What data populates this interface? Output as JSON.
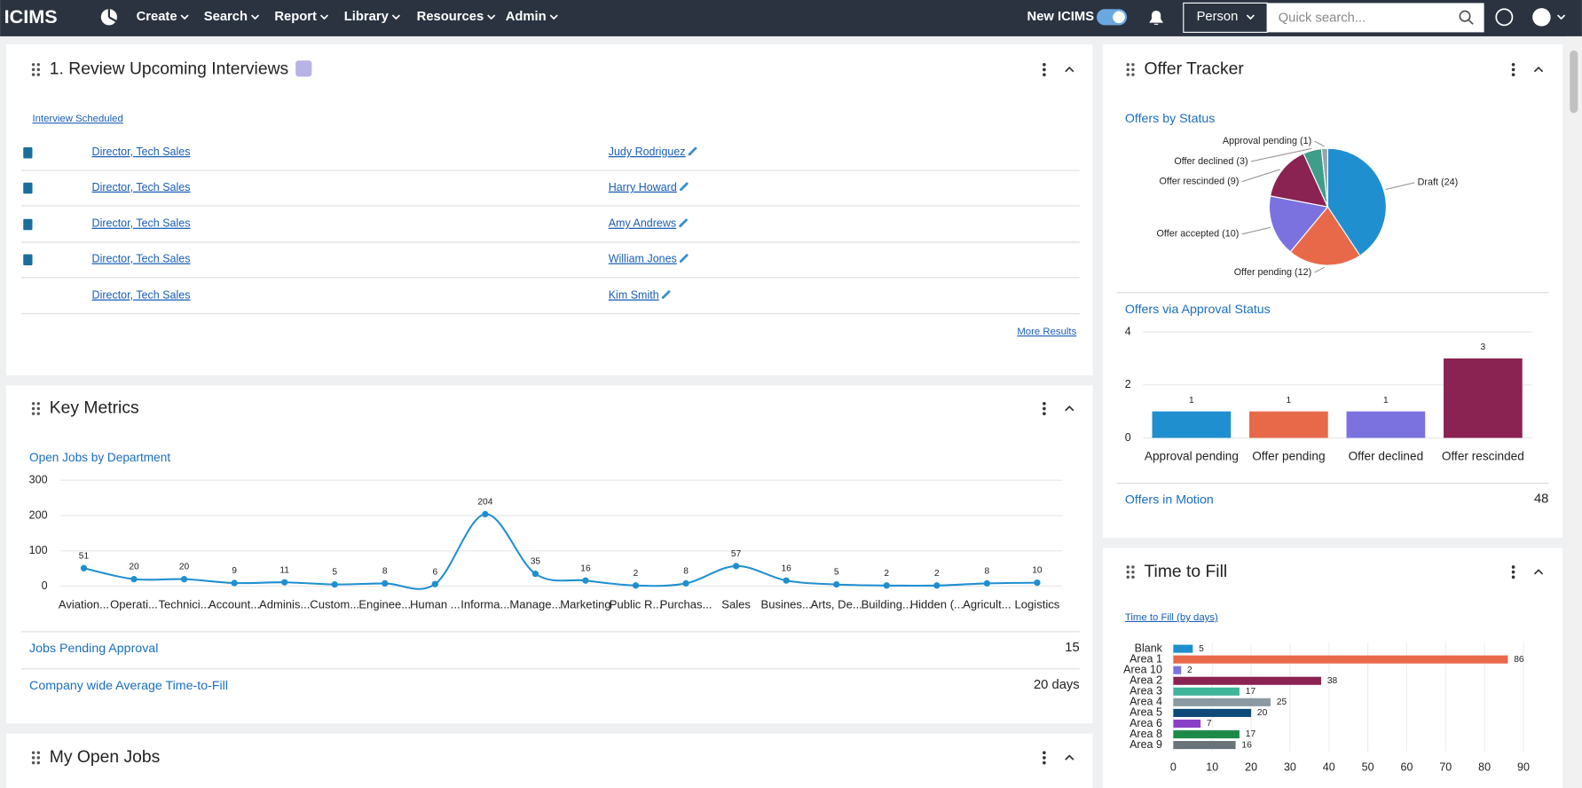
{
  "nav": {
    "logo": "ICIMS",
    "menu": [
      "Create",
      "Search",
      "Report",
      "Library",
      "Resources",
      "Admin"
    ],
    "toggle_label": "New ICIMS",
    "search_scope": "Person",
    "search_placeholder": "Quick search..."
  },
  "interviews": {
    "title": "1. Review Upcoming Interviews",
    "filter": "Interview Scheduled",
    "rows": [
      {
        "job": "Director, Tech Sales",
        "person": "Judy Rodriguez"
      },
      {
        "job": "Director, Tech Sales",
        "person": "Harry Howard"
      },
      {
        "job": "Director, Tech Sales",
        "person": "Amy Andrews"
      },
      {
        "job": "Director, Tech Sales",
        "person": "William Jones"
      },
      {
        "job": "Director, Tech Sales",
        "person": "Kim Smith"
      }
    ],
    "more": "More Results"
  },
  "key_metrics": {
    "title": "Key Metrics",
    "chart": {
      "type": "line",
      "title": "Open Jobs by Department",
      "categories": [
        "Aviation...",
        "Operati...",
        "Technici...",
        "Account...",
        "Adminis...",
        "Custom...",
        "Enginee...",
        "Human ...",
        "Informa...",
        "Manage...",
        "Marketing",
        "Public R...",
        "Purchas...",
        "Sales",
        "Busines...",
        "Arts, De...",
        "Building...",
        "Hidden (...",
        "Agricult...",
        "Logistics"
      ],
      "values": [
        51,
        20,
        20,
        9,
        11,
        5,
        8,
        6,
        204,
        35,
        16,
        2,
        8,
        57,
        16,
        5,
        2,
        2,
        8,
        10
      ],
      "color": "#1f8fd0",
      "ylim": [
        0,
        300
      ],
      "yticks": [
        0,
        100,
        200,
        300
      ],
      "grid": true
    },
    "stats": [
      {
        "label": "Jobs Pending Approval",
        "value": "15"
      },
      {
        "label": "Company wide Average Time-to-Fill",
        "value": "20 days"
      }
    ]
  },
  "my_open_jobs": {
    "title": "My Open Jobs"
  },
  "offer_tracker": {
    "title": "Offer Tracker",
    "pie": {
      "type": "pie",
      "title": "Offers by Status",
      "categories": [
        "Draft",
        "Offer pending",
        "Offer accepted",
        "Offer rescinded",
        "Offer declined",
        "Approval pending"
      ],
      "values": [
        24,
        12,
        10,
        9,
        3,
        1
      ],
      "value_labels": [
        "Draft (24)",
        "Offer pending (12)",
        "Offer accepted (10)",
        "Offer rescinded (9)",
        "Offer declined (3)",
        "Approval pending (1)"
      ],
      "colors": [
        "#1f8fd0",
        "#e8694a",
        "#7b72e0",
        "#8a2252",
        "#3f9e8a",
        "#9aa3a8"
      ]
    },
    "bar": {
      "type": "bar",
      "title": "Offers via Approval Status",
      "categories": [
        "Approval pending",
        "Offer pending",
        "Offer declined",
        "Offer rescinded"
      ],
      "values": [
        1,
        1,
        1,
        3
      ],
      "colors": [
        "#1f8fd0",
        "#e8694a",
        "#7b72e0",
        "#8a2252"
      ],
      "ylim": [
        0,
        4
      ],
      "yticks": [
        0,
        2,
        4
      ],
      "grid": true
    },
    "stat": {
      "label": "Offers in Motion",
      "value": "48"
    }
  },
  "time_to_fill": {
    "title": "Time to Fill",
    "chart": {
      "type": "hbar",
      "title": "Time to Fill (by days)",
      "categories": [
        "Blank",
        "Area 1",
        "Area 10",
        "Area 2",
        "Area 3",
        "Area 4",
        "Area 5",
        "Area 6",
        "Area 8",
        "Area 9"
      ],
      "values": [
        5,
        86,
        2,
        38,
        17,
        25,
        20,
        7,
        17,
        16
      ],
      "colors": [
        "#1f8fd0",
        "#e8694a",
        "#7b72e0",
        "#8a2252",
        "#3fb59a",
        "#8a9aa0",
        "#0d4a78",
        "#8a3fc8",
        "#1e8a4a",
        "#6a7378"
      ],
      "xlim": [
        0,
        90
      ],
      "xticks": [
        0,
        10,
        20,
        30,
        40,
        50,
        60,
        70,
        80,
        90
      ],
      "grid": true
    }
  }
}
